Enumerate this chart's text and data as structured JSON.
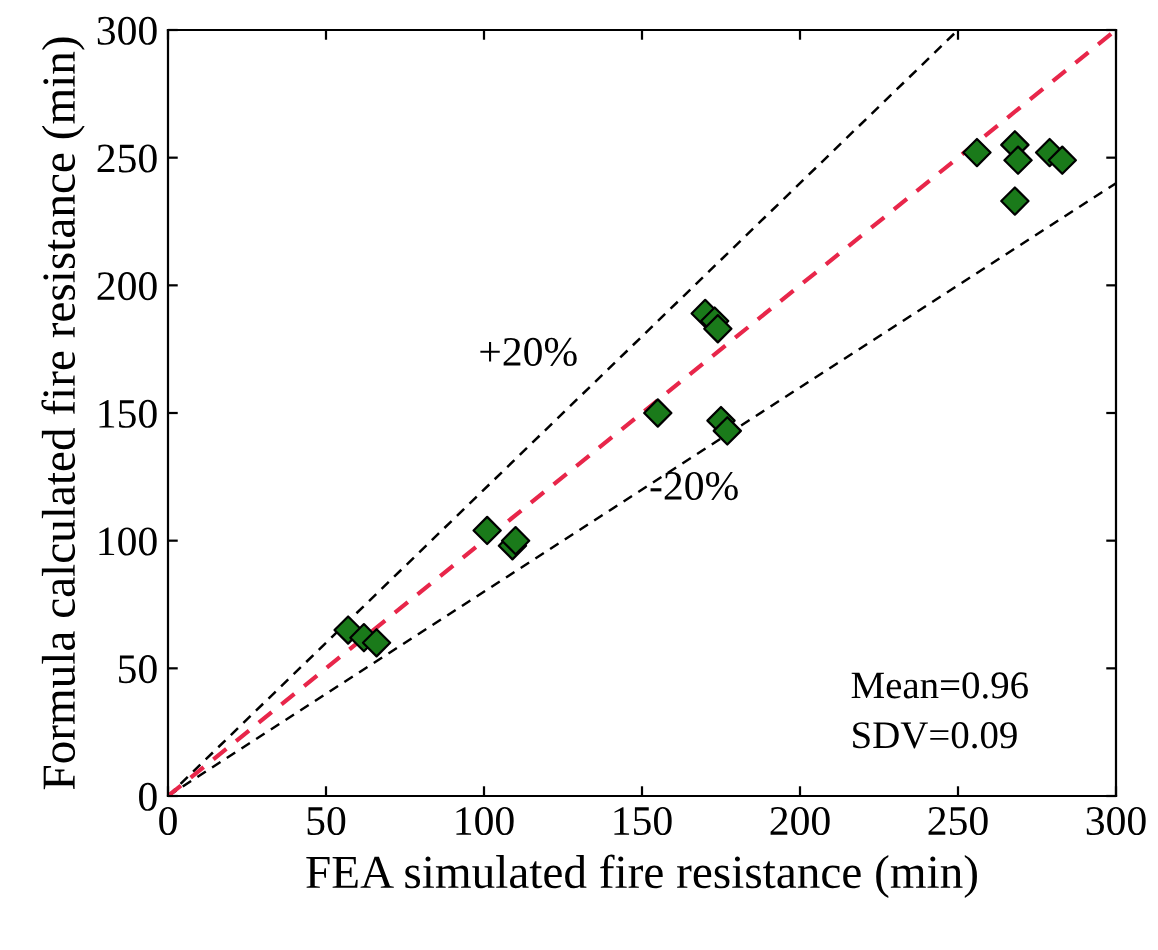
{
  "chart_data": {
    "type": "scatter",
    "xlabel": "FEA simulated fire resistance (min)",
    "ylabel": "Formula calculated fire resistance (min)",
    "xlim": [
      0,
      300
    ],
    "ylim": [
      0,
      300
    ],
    "xticks": [
      0,
      50,
      100,
      150,
      200,
      250,
      300
    ],
    "yticks": [
      0,
      50,
      100,
      150,
      200,
      250,
      300
    ],
    "grid": false,
    "legend": false,
    "series": [
      {
        "type": "line",
        "color": "#000000",
        "line_style": "dashed",
        "x": [
          0,
          250
        ],
        "values": [
          0,
          300
        ]
      },
      {
        "type": "line",
        "color": "#000000",
        "line_style": "dashed",
        "x": [
          0,
          300
        ],
        "values": [
          0,
          240
        ]
      },
      {
        "type": "line",
        "color": "#e8264a",
        "line_style": "dashed",
        "x": [
          0,
          300
        ],
        "values": [
          0,
          300
        ]
      },
      {
        "marker": "diamond",
        "color": "#1a7a1a",
        "x": [
          57,
          62,
          66,
          101,
          109,
          110,
          155,
          170,
          173,
          174,
          175,
          177,
          256,
          268,
          269,
          268,
          279,
          283
        ],
        "values": [
          65,
          62,
          60,
          104,
          98,
          100,
          150,
          189,
          186,
          183,
          147,
          143,
          252,
          255,
          249,
          233,
          252,
          249
        ]
      }
    ],
    "annotations": [
      "+20%",
      "-20%",
      "Mean=0.96",
      "SDV=0.09"
    ]
  }
}
